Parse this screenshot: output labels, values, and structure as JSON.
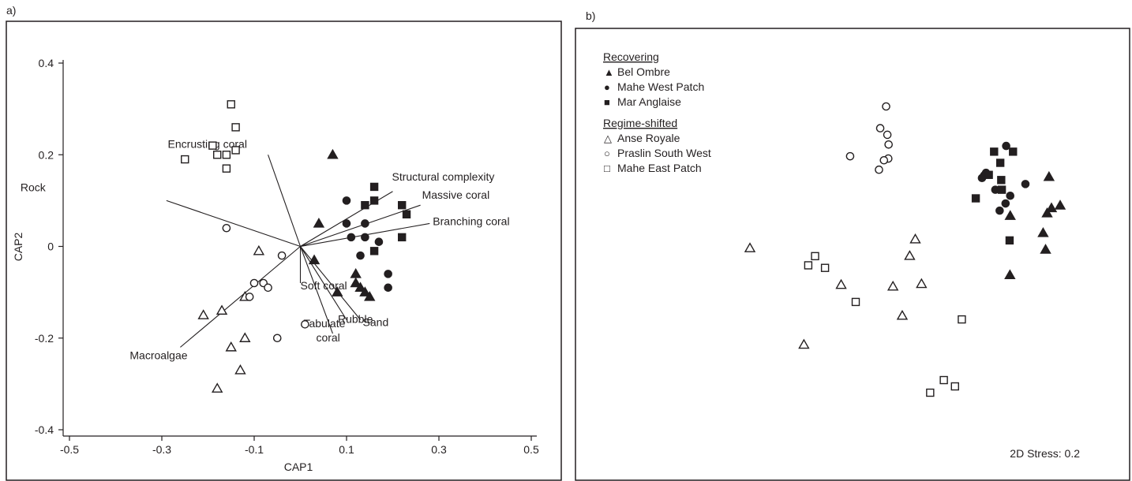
{
  "panel_labels": {
    "a": "a)",
    "b": "b)"
  },
  "chart_data": [
    {
      "type": "scatter",
      "subtype": "CAP ordination biplot",
      "panel": "a)",
      "xlabel": "CAP1",
      "ylabel": "CAP2",
      "xlim": [
        -0.5,
        0.5
      ],
      "ylim": [
        -0.4,
        0.4
      ],
      "xticks": [
        "-0.5",
        "-0.3",
        "-0.1",
        "0.1",
        "0.3",
        "0.5"
      ],
      "yticks": [
        "0.4",
        "0.2",
        "0",
        "-0.2",
        "-0.4"
      ],
      "grid": false,
      "vectors": [
        {
          "label": "Encrusting coral",
          "x": -0.07,
          "y": 0.2
        },
        {
          "label": "Rock",
          "x": -0.29,
          "y": 0.1
        },
        {
          "label": "Structural complexity",
          "x": 0.2,
          "y": 0.12
        },
        {
          "label": "Massive coral",
          "x": 0.26,
          "y": 0.09
        },
        {
          "label": "Branching coral",
          "x": 0.28,
          "y": 0.05
        },
        {
          "label": "Soft coral",
          "x": 0.0,
          "y": -0.08
        },
        {
          "label": "Tabulate coral",
          "x": 0.07,
          "y": -0.19
        },
        {
          "label": "Rubble",
          "x": 0.1,
          "y": -0.16
        },
        {
          "label": "Sand",
          "x": 0.13,
          "y": -0.16
        },
        {
          "label": "Macroalgae",
          "x": -0.26,
          "y": -0.22
        }
      ],
      "series": [
        {
          "name": "Bel Ombre",
          "marker": "triangle",
          "filled": true,
          "points": [
            [
              0.07,
              0.2
            ],
            [
              0.04,
              0.05
            ],
            [
              0.03,
              -0.03
            ],
            [
              0.08,
              -0.1
            ],
            [
              0.12,
              -0.06
            ],
            [
              0.12,
              -0.08
            ],
            [
              0.13,
              -0.09
            ],
            [
              0.14,
              -0.1
            ],
            [
              0.15,
              -0.11
            ]
          ]
        },
        {
          "name": "Mahe West Patch",
          "marker": "circle",
          "filled": true,
          "points": [
            [
              0.1,
              0.1
            ],
            [
              0.1,
              0.05
            ],
            [
              0.14,
              0.05
            ],
            [
              0.11,
              0.02
            ],
            [
              0.14,
              0.02
            ],
            [
              0.17,
              0.01
            ],
            [
              0.13,
              -0.02
            ],
            [
              0.19,
              -0.06
            ],
            [
              0.19,
              -0.09
            ]
          ]
        },
        {
          "name": "Mar Anglaise",
          "marker": "square",
          "filled": true,
          "points": [
            [
              0.16,
              0.13
            ],
            [
              0.14,
              0.09
            ],
            [
              0.16,
              0.1
            ],
            [
              0.22,
              0.09
            ],
            [
              0.23,
              0.07
            ],
            [
              0.22,
              0.02
            ],
            [
              0.16,
              -0.01
            ]
          ]
        },
        {
          "name": "Anse Royale",
          "marker": "triangle",
          "filled": false,
          "points": [
            [
              -0.09,
              -0.01
            ],
            [
              -0.12,
              -0.11
            ],
            [
              -0.21,
              -0.15
            ],
            [
              -0.17,
              -0.14
            ],
            [
              -0.12,
              -0.2
            ],
            [
              -0.15,
              -0.22
            ],
            [
              -0.13,
              -0.27
            ],
            [
              -0.18,
              -0.31
            ]
          ]
        },
        {
          "name": "Praslin South West",
          "marker": "circle",
          "filled": false,
          "points": [
            [
              -0.16,
              0.04
            ],
            [
              -0.04,
              -0.02
            ],
            [
              -0.1,
              -0.08
            ],
            [
              -0.08,
              -0.08
            ],
            [
              -0.07,
              -0.09
            ],
            [
              -0.11,
              -0.11
            ],
            [
              0.01,
              -0.17
            ],
            [
              -0.05,
              -0.2
            ]
          ]
        },
        {
          "name": "Mahe East Patch",
          "marker": "square",
          "filled": false,
          "points": [
            [
              -0.15,
              0.31
            ],
            [
              -0.14,
              0.26
            ],
            [
              -0.25,
              0.19
            ],
            [
              -0.19,
              0.22
            ],
            [
              -0.18,
              0.2
            ],
            [
              -0.16,
              0.2
            ],
            [
              -0.14,
              0.21
            ],
            [
              -0.16,
              0.17
            ]
          ]
        }
      ]
    },
    {
      "type": "scatter",
      "subtype": "nMDS ordination",
      "panel": "b)",
      "xlabel": "",
      "ylabel": "",
      "axes": false,
      "annotation": "2D Stress: 0.2",
      "legend": {
        "groups": [
          {
            "heading": "Recovering",
            "entries": [
              {
                "label": "Bel Ombre",
                "glyph": "▲"
              },
              {
                "label": "Mahe West Patch",
                "glyph": "●"
              },
              {
                "label": "Mar Anglaise",
                "glyph": "■"
              }
            ]
          },
          {
            "heading": "Regime-shifted",
            "entries": [
              {
                "label": "Anse Royale",
                "glyph": "△"
              },
              {
                "label": "Praslin South West",
                "glyph": "○"
              },
              {
                "label": "Mahe East Patch",
                "glyph": "□"
              }
            ]
          }
        ],
        "placement": "top-left"
      },
      "xlim": [
        0,
        1
      ],
      "ylim": [
        0,
        1
      ],
      "series": [
        {
          "name": "Bel Ombre",
          "marker": "triangle",
          "filled": true,
          "points": [
            [
              0.964,
              0.754
            ],
            [
              0.972,
              0.645
            ],
            [
              1.0,
              0.654
            ],
            [
              0.958,
              0.627
            ],
            [
              0.839,
              0.618
            ],
            [
              0.945,
              0.558
            ],
            [
              0.953,
              0.5
            ],
            [
              0.838,
              0.411
            ]
          ]
        },
        {
          "name": "Mahe West Patch",
          "marker": "circle",
          "filled": true,
          "points": [
            [
              0.826,
              0.862
            ],
            [
              0.761,
              0.768
            ],
            [
              0.755,
              0.759
            ],
            [
              0.748,
              0.75
            ],
            [
              0.888,
              0.729
            ],
            [
              0.791,
              0.709
            ],
            [
              0.839,
              0.688
            ],
            [
              0.824,
              0.661
            ],
            [
              0.805,
              0.636
            ]
          ]
        },
        {
          "name": "Mar Anglaise",
          "marker": "square",
          "filled": true,
          "points": [
            [
              0.787,
              0.842
            ],
            [
              0.848,
              0.842
            ],
            [
              0.807,
              0.803
            ],
            [
              0.81,
              0.743
            ],
            [
              0.77,
              0.761
            ],
            [
              0.812,
              0.709
            ],
            [
              0.728,
              0.679
            ],
            [
              0.837,
              0.532
            ]
          ]
        },
        {
          "name": "Anse Royale",
          "marker": "triangle",
          "filled": false,
          "points": [
            [
              0.0,
              0.505
            ],
            [
              0.533,
              0.536
            ],
            [
              0.515,
              0.478
            ],
            [
              0.553,
              0.38
            ],
            [
              0.461,
              0.371
            ],
            [
              0.294,
              0.377
            ],
            [
              0.491,
              0.269
            ],
            [
              0.174,
              0.168
            ]
          ]
        },
        {
          "name": "Praslin South West",
          "marker": "circle",
          "filled": false,
          "points": [
            [
              0.439,
              1.0
            ],
            [
              0.42,
              0.924
            ],
            [
              0.443,
              0.901
            ],
            [
              0.447,
              0.867
            ],
            [
              0.446,
              0.818
            ],
            [
              0.432,
              0.812
            ],
            [
              0.323,
              0.826
            ],
            [
              0.416,
              0.779
            ]
          ]
        },
        {
          "name": "Mahe East Patch",
          "marker": "square",
          "filled": false,
          "points": [
            [
              0.21,
              0.477
            ],
            [
              0.188,
              0.445
            ],
            [
              0.242,
              0.436
            ],
            [
              0.341,
              0.317
            ],
            [
              0.683,
              0.256
            ],
            [
              0.625,
              0.044
            ],
            [
              0.661,
              0.022
            ],
            [
              0.581,
              0.0
            ]
          ]
        }
      ]
    }
  ]
}
